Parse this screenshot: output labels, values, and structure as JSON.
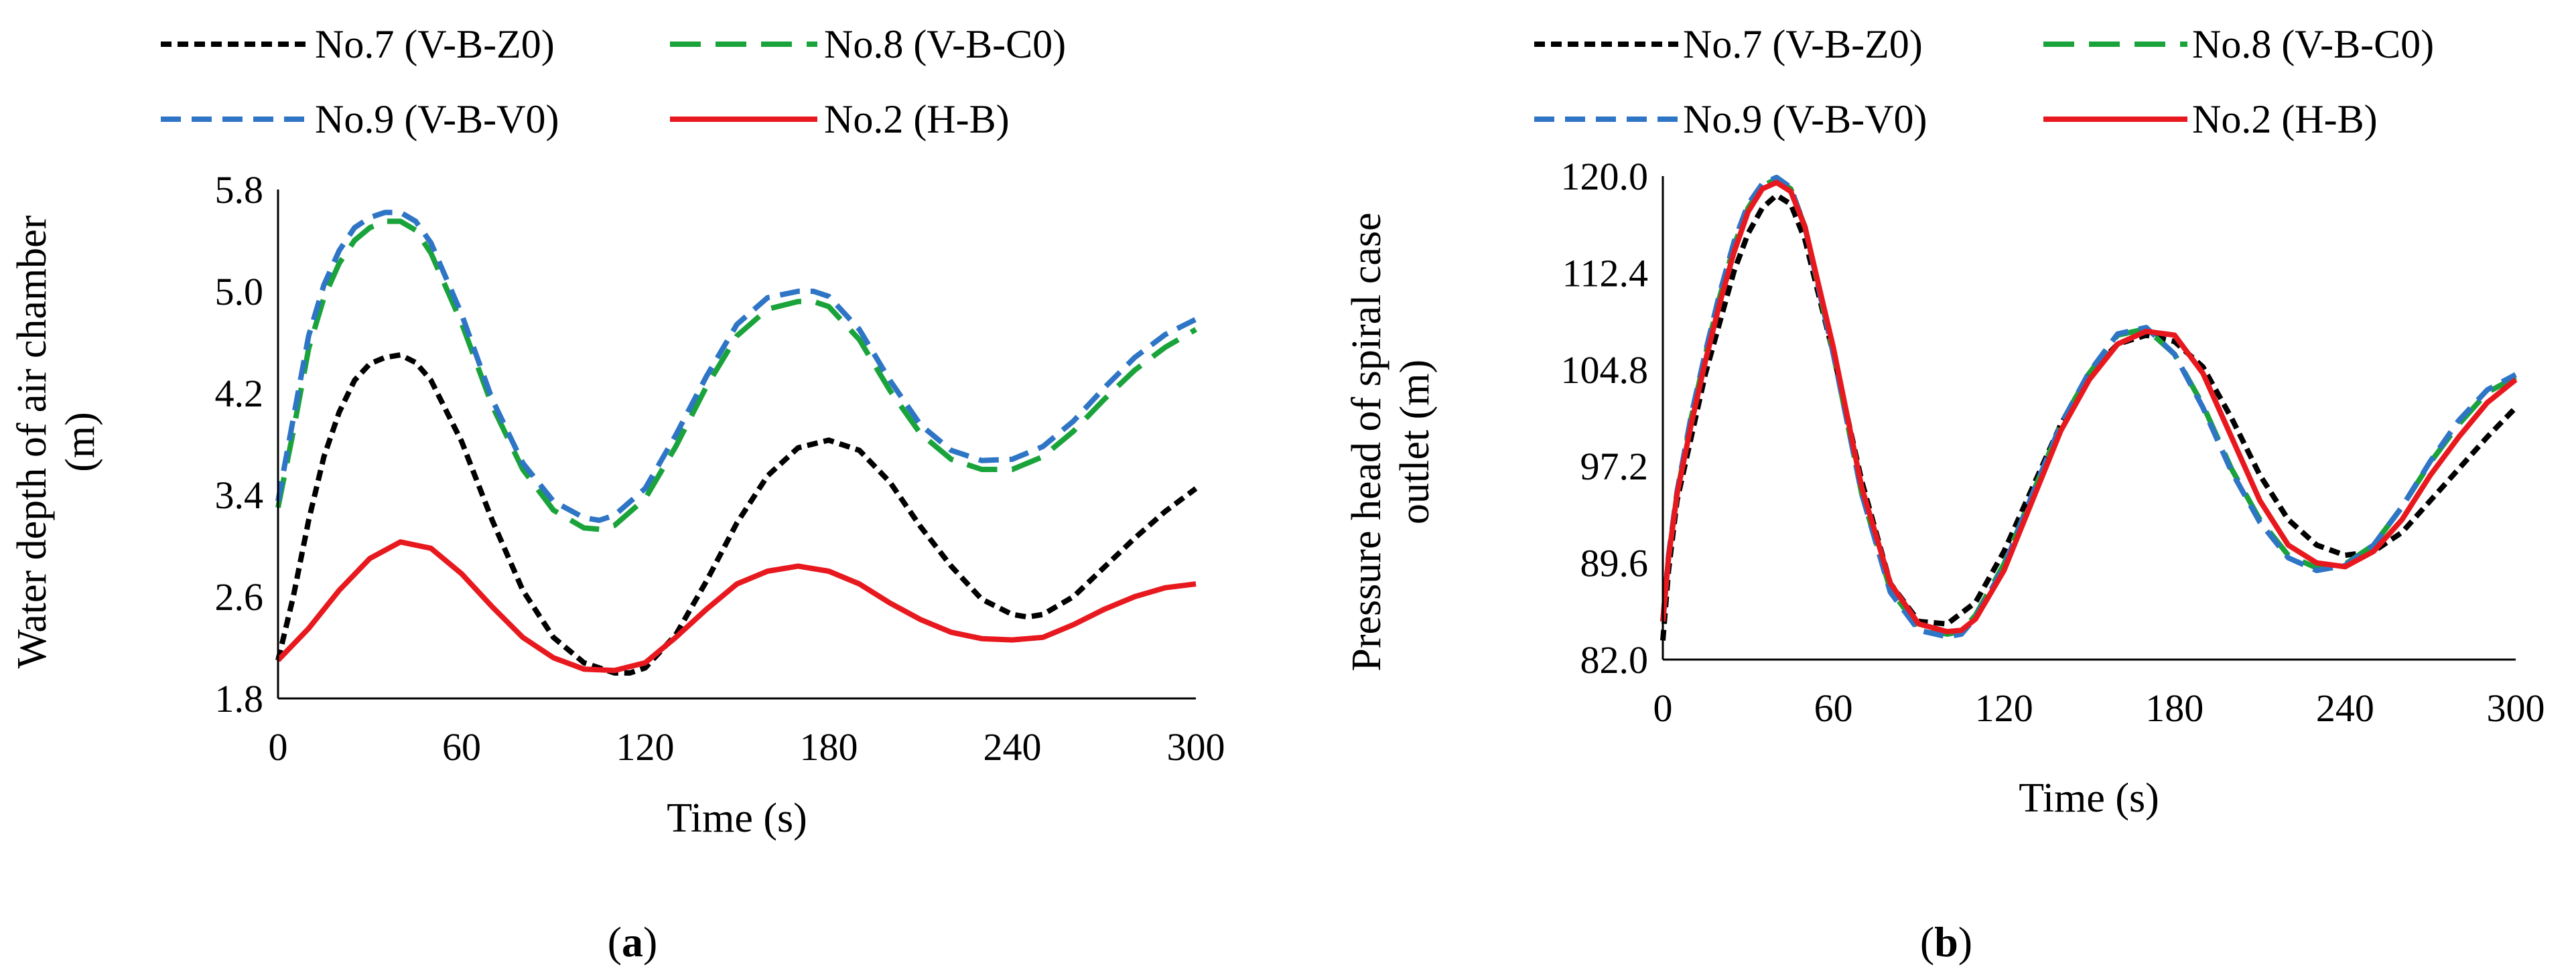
{
  "figure": {
    "captions": [
      {
        "open": "(",
        "letter": "a",
        "close": ")"
      },
      {
        "open": "(",
        "letter": "b",
        "close": ")"
      }
    ]
  },
  "chart_data": [
    {
      "type": "line",
      "id": "a",
      "title": "",
      "xlabel": "Time (s)",
      "ylabel_lines": [
        "Water depth of air chamber",
        "(m)"
      ],
      "xlim": [
        0,
        300
      ],
      "ylim": [
        1.8,
        5.8
      ],
      "xticks": [
        "0",
        "60",
        "120",
        "180",
        "240",
        "300"
      ],
      "yticks": [
        "1.8",
        "2.6",
        "3.4",
        "4.2",
        "5.0",
        "5.8"
      ],
      "grid": false,
      "legend_position": "top",
      "series": [
        {
          "name": "No.7 (V-B-Z0)",
          "color": "#000000",
          "style": "dotted-dash",
          "x": [
            0,
            5,
            10,
            15,
            20,
            25,
            30,
            35,
            40,
            45,
            50,
            60,
            70,
            80,
            90,
            100,
            110,
            115,
            120,
            130,
            140,
            150,
            160,
            170,
            180,
            190,
            200,
            210,
            220,
            230,
            240,
            245,
            250,
            260,
            270,
            280,
            290,
            300
          ],
          "y": [
            2.1,
            2.6,
            3.2,
            3.7,
            4.05,
            4.3,
            4.43,
            4.48,
            4.5,
            4.44,
            4.3,
            3.82,
            3.2,
            2.65,
            2.28,
            2.08,
            2.0,
            2.0,
            2.04,
            2.3,
            2.72,
            3.18,
            3.55,
            3.77,
            3.83,
            3.75,
            3.5,
            3.15,
            2.84,
            2.58,
            2.46,
            2.44,
            2.46,
            2.6,
            2.83,
            3.06,
            3.27,
            3.45
          ]
        },
        {
          "name": "No.8 (V-B-C0)",
          "color": "#1aa33a",
          "style": "long-dash",
          "x": [
            0,
            5,
            10,
            15,
            20,
            25,
            30,
            35,
            40,
            45,
            50,
            60,
            70,
            80,
            90,
            100,
            105,
            110,
            120,
            130,
            140,
            150,
            160,
            170,
            175,
            180,
            190,
            200,
            210,
            220,
            230,
            240,
            250,
            260,
            270,
            280,
            290,
            300
          ],
          "y": [
            3.3,
            3.9,
            4.55,
            4.95,
            5.22,
            5.4,
            5.5,
            5.55,
            5.55,
            5.48,
            5.3,
            4.75,
            4.1,
            3.6,
            3.28,
            3.14,
            3.13,
            3.16,
            3.37,
            3.78,
            4.25,
            4.65,
            4.86,
            4.92,
            4.92,
            4.88,
            4.62,
            4.22,
            3.88,
            3.68,
            3.6,
            3.6,
            3.7,
            3.9,
            4.15,
            4.38,
            4.56,
            4.7
          ]
        },
        {
          "name": "No.9 (V-B-V0)",
          "color": "#2e75c6",
          "style": "dash",
          "x": [
            0,
            5,
            10,
            15,
            20,
            25,
            30,
            35,
            40,
            45,
            50,
            60,
            70,
            80,
            90,
            100,
            105,
            110,
            120,
            130,
            140,
            150,
            160,
            170,
            175,
            180,
            190,
            200,
            210,
            220,
            230,
            240,
            250,
            260,
            270,
            280,
            290,
            300
          ],
          "y": [
            3.35,
            4.0,
            4.65,
            5.05,
            5.32,
            5.5,
            5.58,
            5.62,
            5.62,
            5.55,
            5.38,
            4.82,
            4.15,
            3.65,
            3.35,
            3.22,
            3.2,
            3.24,
            3.45,
            3.87,
            4.33,
            4.74,
            4.95,
            5.0,
            5.0,
            4.96,
            4.7,
            4.3,
            3.95,
            3.75,
            3.67,
            3.68,
            3.78,
            3.98,
            4.24,
            4.48,
            4.66,
            4.78
          ]
        },
        {
          "name": "No.2 (H-B)",
          "color": "#e8191e",
          "style": "solid",
          "x": [
            0,
            10,
            20,
            30,
            40,
            50,
            60,
            70,
            80,
            90,
            100,
            110,
            120,
            130,
            140,
            150,
            160,
            170,
            180,
            190,
            200,
            210,
            220,
            230,
            240,
            250,
            260,
            270,
            280,
            290,
            300
          ],
          "y": [
            2.1,
            2.35,
            2.65,
            2.9,
            3.03,
            2.98,
            2.78,
            2.52,
            2.28,
            2.12,
            2.03,
            2.02,
            2.08,
            2.28,
            2.5,
            2.7,
            2.8,
            2.84,
            2.8,
            2.7,
            2.55,
            2.42,
            2.32,
            2.27,
            2.26,
            2.28,
            2.38,
            2.5,
            2.6,
            2.67,
            2.7
          ]
        }
      ]
    },
    {
      "type": "line",
      "id": "b",
      "title": "",
      "xlabel": "Time (s)",
      "ylabel_lines": [
        "Pressure head of spiral case",
        "outlet (m)"
      ],
      "xlim": [
        0,
        300
      ],
      "ylim": [
        82.0,
        120.0
      ],
      "xticks": [
        "0",
        "60",
        "120",
        "180",
        "240",
        "300"
      ],
      "yticks": [
        "82.0",
        "89.6",
        "97.2",
        "104.8",
        "112.4",
        "120.0"
      ],
      "grid": false,
      "legend_position": "top",
      "series": [
        {
          "name": "No.7 (V-B-Z0)",
          "color": "#000000",
          "style": "dotted-dash",
          "x": [
            0,
            2,
            5,
            10,
            15,
            20,
            25,
            30,
            35,
            40,
            45,
            50,
            60,
            70,
            80,
            90,
            100,
            110,
            120,
            130,
            140,
            150,
            160,
            170,
            180,
            190,
            200,
            210,
            220,
            230,
            240,
            250,
            260,
            270,
            280,
            290,
            300
          ],
          "y": [
            83.5,
            89.0,
            94.5,
            99.5,
            104.5,
            108.5,
            112.5,
            115.5,
            117.5,
            118.5,
            117.8,
            115.0,
            106.0,
            96.0,
            88.0,
            85.0,
            84.8,
            86.5,
            90.5,
            95.5,
            100.5,
            104.5,
            106.8,
            107.5,
            107.0,
            105.0,
            101.0,
            96.5,
            93.0,
            91.0,
            90.2,
            90.5,
            92.0,
            94.5,
            97.0,
            99.5,
            101.8
          ]
        },
        {
          "name": "No.8 (V-B-C0)",
          "color": "#1aa33a",
          "style": "long-dash",
          "x": [
            0,
            2,
            5,
            10,
            15,
            20,
            25,
            30,
            35,
            40,
            45,
            50,
            60,
            70,
            80,
            90,
            100,
            105,
            110,
            120,
            130,
            140,
            150,
            160,
            170,
            180,
            190,
            200,
            210,
            220,
            230,
            240,
            250,
            260,
            270,
            280,
            290,
            300
          ],
          "y": [
            85.0,
            90.0,
            95.0,
            101.0,
            106.0,
            110.5,
            114.5,
            117.5,
            119.2,
            119.8,
            119.0,
            116.0,
            106.0,
            95.0,
            87.5,
            84.5,
            84.0,
            84.2,
            85.5,
            89.5,
            95.0,
            100.5,
            104.5,
            107.5,
            108.0,
            106.0,
            102.0,
            97.0,
            93.0,
            90.2,
            89.2,
            89.5,
            91.0,
            94.0,
            97.5,
            100.5,
            103.0,
            104.2
          ]
        },
        {
          "name": "No.9 (V-B-V0)",
          "color": "#2e75c6",
          "style": "dash",
          "x": [
            0,
            2,
            5,
            10,
            15,
            20,
            25,
            30,
            35,
            40,
            45,
            50,
            60,
            70,
            80,
            90,
            100,
            105,
            110,
            120,
            130,
            140,
            150,
            160,
            170,
            180,
            190,
            200,
            210,
            220,
            230,
            240,
            250,
            260,
            270,
            280,
            290,
            300
          ],
          "y": [
            85.0,
            90.2,
            95.2,
            101.2,
            106.2,
            110.8,
            114.8,
            117.8,
            119.4,
            119.9,
            119.1,
            116.0,
            106.0,
            95.0,
            87.3,
            84.3,
            83.8,
            84.0,
            85.3,
            89.3,
            95.0,
            100.5,
            104.6,
            107.6,
            108.1,
            106.0,
            101.8,
            96.8,
            92.8,
            90.0,
            89.0,
            89.4,
            91.0,
            94.0,
            97.6,
            100.8,
            103.2,
            104.4
          ]
        },
        {
          "name": "No.2 (H-B)",
          "color": "#e8191e",
          "style": "solid",
          "x": [
            0,
            2,
            5,
            10,
            15,
            20,
            25,
            30,
            35,
            40,
            45,
            50,
            60,
            70,
            80,
            90,
            100,
            105,
            110,
            120,
            130,
            140,
            150,
            160,
            170,
            180,
            190,
            200,
            210,
            220,
            230,
            240,
            250,
            260,
            270,
            280,
            290,
            300
          ],
          "y": [
            85.0,
            90.0,
            95.0,
            100.5,
            105.5,
            110.0,
            114.0,
            117.2,
            119.0,
            119.5,
            118.8,
            116.0,
            106.5,
            95.5,
            88.0,
            84.8,
            84.2,
            84.3,
            85.2,
            89.0,
            94.5,
            100.0,
            104.0,
            106.8,
            107.8,
            107.5,
            104.5,
            99.5,
            94.5,
            91.0,
            89.6,
            89.3,
            90.5,
            93.0,
            96.5,
            99.5,
            102.2,
            104.0
          ]
        }
      ]
    }
  ]
}
